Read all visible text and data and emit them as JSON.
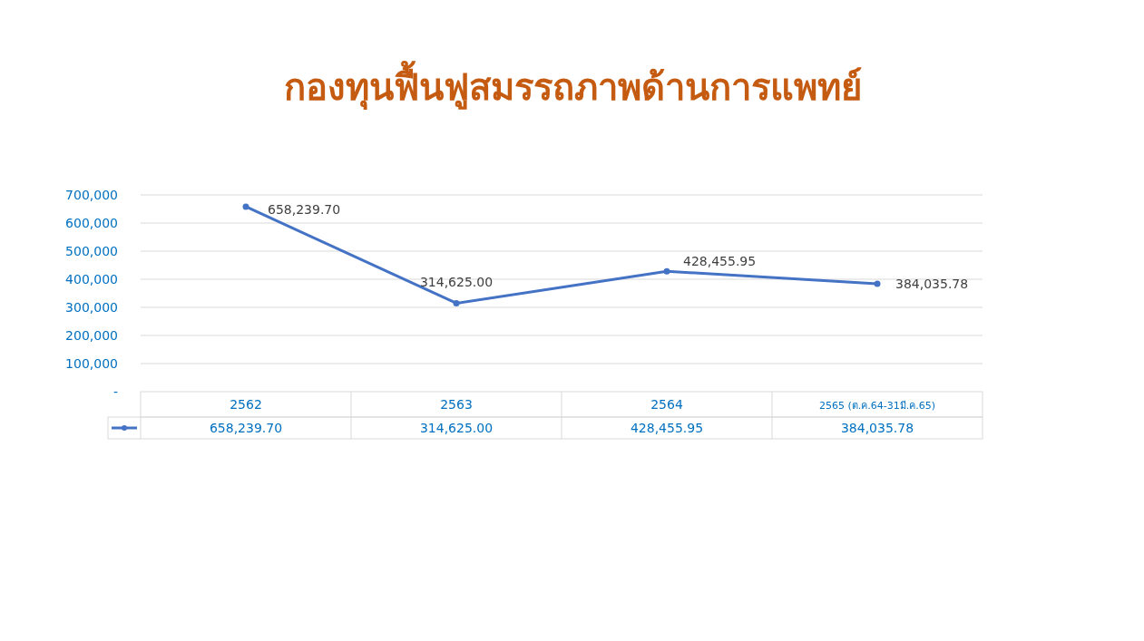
{
  "chart_data": {
    "type": "line",
    "title": "กองทุนฟื้นฟูสมรรถภาพด้านการแพทย์",
    "categories": [
      "2562",
      "2563",
      "2564",
      "2565 (ต.ค.64-31มี.ค.65)"
    ],
    "values": [
      658239.7,
      314625.0,
      428455.95,
      384035.78
    ],
    "value_labels": [
      "658,239.70",
      "314,625.00",
      "428,455.95",
      "384,035.78"
    ],
    "color": "#4472c4",
    "ylim": [
      0,
      700000
    ],
    "yticks": [
      {
        "value": 0,
        "label": "-"
      },
      {
        "value": 100000,
        "label": "100,000"
      },
      {
        "value": 200000,
        "label": "200,000"
      },
      {
        "value": 300000,
        "label": "300,000"
      },
      {
        "value": 400000,
        "label": "400,000"
      },
      {
        "value": 500000,
        "label": "500,000"
      },
      {
        "value": 600000,
        "label": "600,000"
      },
      {
        "value": 700000,
        "label": "700,000"
      }
    ],
    "grid": "y",
    "marker": "circle",
    "line_style": "solid"
  }
}
